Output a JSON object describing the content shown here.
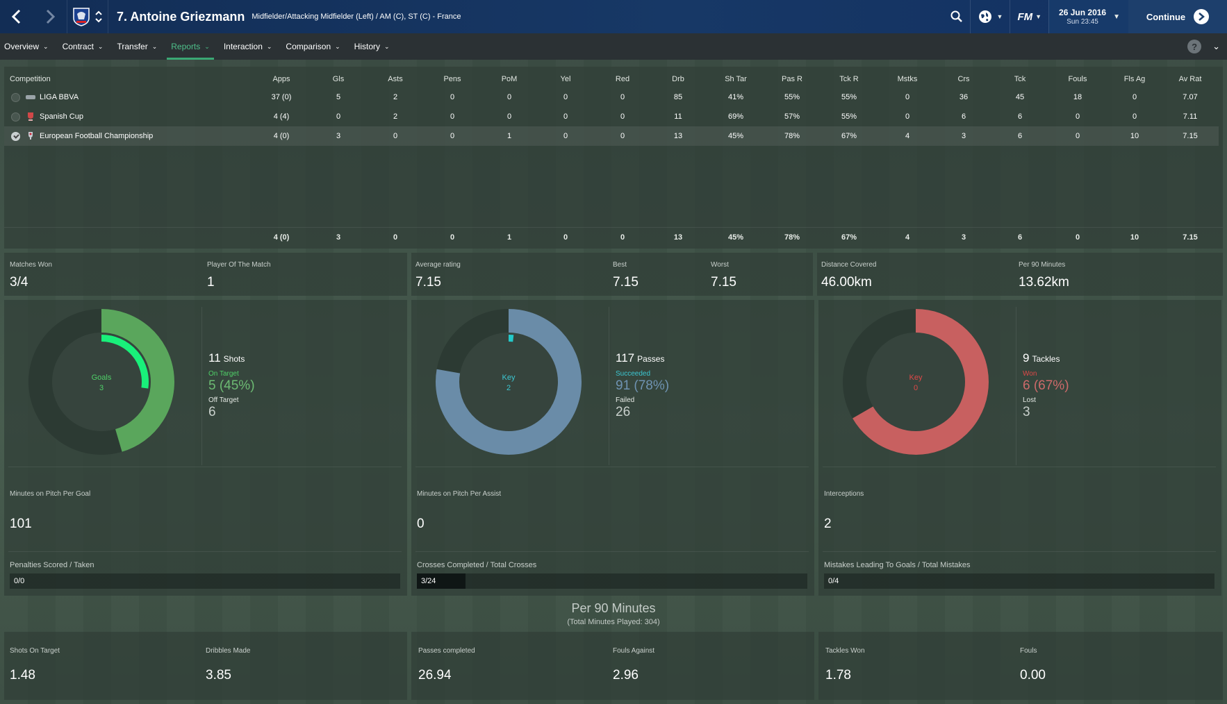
{
  "header": {
    "player_name": "7. Antoine Griezmann",
    "positions": "Midfielder/Attacking Midfielder (Left) / AM (C), ST (C) - France",
    "date": "26 Jun 2016",
    "time": "Sun 23:45",
    "continue_label": "Continue"
  },
  "tabs": [
    {
      "label": "Overview"
    },
    {
      "label": "Contract"
    },
    {
      "label": "Transfer"
    },
    {
      "label": "Reports",
      "active": true
    },
    {
      "label": "Interaction"
    },
    {
      "label": "Comparison"
    },
    {
      "label": "History"
    }
  ],
  "table": {
    "columns": [
      "Competition",
      "Apps",
      "Gls",
      "Asts",
      "Pens",
      "PoM",
      "Yel",
      "Red",
      "Drb",
      "Sh Tar",
      "Pas R",
      "Tck R",
      "Mstks",
      "Crs",
      "Tck",
      "Fouls",
      "Fls Ag",
      "Av Rat"
    ],
    "rows": [
      {
        "name": "LIGA BBVA",
        "values": [
          "37 (0)",
          "5",
          "2",
          "0",
          "0",
          "0",
          "0",
          "85",
          "41%",
          "55%",
          "55%",
          "0",
          "36",
          "45",
          "18",
          "0",
          "7.07"
        ]
      },
      {
        "name": "Spanish Cup",
        "values": [
          "4 (4)",
          "0",
          "2",
          "0",
          "0",
          "0",
          "0",
          "11",
          "69%",
          "57%",
          "55%",
          "0",
          "6",
          "6",
          "0",
          "0",
          "7.11"
        ]
      },
      {
        "name": "European Football Championship",
        "values": [
          "4 (0)",
          "3",
          "0",
          "0",
          "1",
          "0",
          "0",
          "13",
          "45%",
          "78%",
          "67%",
          "4",
          "3",
          "6",
          "0",
          "10",
          "7.15"
        ],
        "selected": true
      }
    ],
    "totals": [
      "4 (0)",
      "3",
      "0",
      "0",
      "1",
      "0",
      "0",
      "13",
      "45%",
      "78%",
      "67%",
      "4",
      "3",
      "6",
      "0",
      "10",
      "7.15"
    ]
  },
  "summary": {
    "matches_won_label": "Matches Won",
    "matches_won": "3/4",
    "pom_label": "Player Of The Match",
    "pom": "1",
    "avg_rating_label": "Average rating",
    "avg_rating": "7.15",
    "best_label": "Best",
    "best": "7.15",
    "worst_label": "Worst",
    "worst": "7.15",
    "distance_label": "Distance Covered",
    "distance": "46.00km",
    "per90_dist_label": "Per 90 Minutes",
    "per90_dist": "13.62km"
  },
  "shots": {
    "center_label": "Goals",
    "center_value": "3",
    "total": "11",
    "total_label": "Shots",
    "on_label": "On Target",
    "on_value": "5 (45%)",
    "off_label": "Off Target",
    "off_value": "6",
    "ring_fraction": 0.4545,
    "inner_fraction": 0.2727,
    "ring_color": "#5aa65c",
    "inner_color": "#19f07a",
    "label_color": "#4fd068",
    "value_color": "#6dbb73",
    "minutes_label": "Minutes on Pitch Per Goal",
    "minutes_value": "101",
    "bar_label": "Penalties Scored / Taken",
    "bar_text": "0/0",
    "bar_fraction": 0
  },
  "passes": {
    "center_label": "Key",
    "center_value": "2",
    "total": "117",
    "total_label": "Passes",
    "on_label": "Succeeded",
    "on_value": "91 (78%)",
    "off_label": "Failed",
    "off_value": "26",
    "ring_fraction": 0.7778,
    "inner_fraction": 0.0171,
    "ring_color": "#6a8ca8",
    "inner_color": "#24c9c9",
    "label_color": "#3cc7d2",
    "value_color": "#6f93b2",
    "minutes_label": "Minutes on Pitch Per Assist",
    "minutes_value": "0",
    "bar_label": "Crosses Completed / Total Crosses",
    "bar_text": "3/24",
    "bar_fraction": 0.125
  },
  "tackles": {
    "center_label": "Key",
    "center_value": "0",
    "total": "9",
    "total_label": "Tackles",
    "on_label": "Won",
    "on_value": "6 (67%)",
    "off_label": "Lost",
    "off_value": "3",
    "ring_fraction": 0.6667,
    "inner_fraction": 0,
    "ring_color": "#c86060",
    "inner_color": "#e04040",
    "label_color": "#e04848",
    "value_color": "#cd6a6a",
    "minutes_label": "Interceptions",
    "minutes_value": "2",
    "bar_label": "Mistakes Leading To Goals / Total Mistakes",
    "bar_text": "0/4",
    "bar_fraction": 0
  },
  "per90": {
    "title": "Per 90 Minutes",
    "subtitle": "(Total Minutes Played: 304)",
    "items": [
      {
        "label": "Shots On Target",
        "value": "1.48"
      },
      {
        "label": "Dribbles Made",
        "value": "3.85"
      },
      {
        "label": "Passes completed",
        "value": "26.94"
      },
      {
        "label": "Fouls Against",
        "value": "2.96"
      },
      {
        "label": "Tackles Won",
        "value": "1.78"
      },
      {
        "label": "Fouls",
        "value": "0.00"
      }
    ]
  },
  "colors": {
    "accent": "#3aa874",
    "header_bg": "#173866",
    "tab_bg": "#2b3134"
  }
}
